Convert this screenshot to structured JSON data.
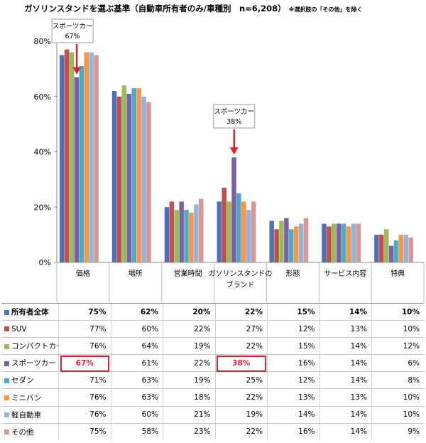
{
  "title": "ガソリンスタンドを選ぶ基準（自動車所有者のみ/車種別　n=6,208）",
  "title_note": "※選択肢の「その他」を除く",
  "callouts": [
    {
      "label_line1": "スポーツカー",
      "label_line2": "67%",
      "category_index": 0,
      "series_index": 3,
      "color": "#e0202a"
    },
    {
      "label_line1": "スポーツカー",
      "label_line2": "38%",
      "category_index": 3,
      "series_index": 3,
      "color": "#e0202a"
    }
  ],
  "chart_data": {
    "type": "bar",
    "categories": [
      "価格",
      "場所",
      "営業時間",
      "ガソリンスタンドのブランド",
      "形態",
      "サービス内容",
      "特典"
    ],
    "category_labels_display": [
      [
        "価格"
      ],
      [
        "場所"
      ],
      [
        "営業時間"
      ],
      [
        "ガソリンスタンドの",
        "ブランド"
      ],
      [
        "形態"
      ],
      [
        "サービス内容"
      ],
      [
        "特典"
      ]
    ],
    "ylim": [
      0,
      80
    ],
    "yticks": [
      0,
      20,
      40,
      60,
      80
    ],
    "ytick_labels": [
      "0%",
      "20%",
      "40%",
      "60%",
      "80%"
    ],
    "grid": false,
    "series": [
      {
        "name": "所有者全体",
        "color": "#4f70b8",
        "values": [
          75,
          62,
          20,
          22,
          15,
          14,
          10
        ],
        "labels": [
          "75%",
          "62%",
          "20%",
          "22%",
          "15%",
          "14%",
          "10%"
        ]
      },
      {
        "name": "SUV",
        "color": "#c0504d",
        "values": [
          77,
          60,
          22,
          27,
          12,
          13,
          10
        ],
        "labels": [
          "77%",
          "60%",
          "22%",
          "27%",
          "12%",
          "13%",
          "10%"
        ]
      },
      {
        "name": "コンパクトカー",
        "color": "#9bbb59",
        "values": [
          76,
          64,
          19,
          22,
          15,
          14,
          12
        ],
        "labels": [
          "76%",
          "64%",
          "19%",
          "22%",
          "15%",
          "14%",
          "12%"
        ]
      },
      {
        "name": "スポーツカー",
        "color": "#7d5fa6",
        "values": [
          67,
          61,
          22,
          38,
          16,
          14,
          6
        ],
        "labels": [
          "67%",
          "61%",
          "22%",
          "38%",
          "16%",
          "14%",
          "6%"
        ]
      },
      {
        "name": "セダン",
        "color": "#4bacc6",
        "values": [
          71,
          63,
          19,
          25,
          12,
          14,
          8
        ],
        "labels": [
          "71%",
          "63%",
          "19%",
          "25%",
          "12%",
          "14%",
          "8%"
        ]
      },
      {
        "name": "ミニバン",
        "color": "#f79646",
        "values": [
          76,
          63,
          18,
          22,
          13,
          13,
          10
        ],
        "labels": [
          "76%",
          "63%",
          "18%",
          "22%",
          "13%",
          "13%",
          "10%"
        ]
      },
      {
        "name": "軽自動車",
        "color": "#95b3d7",
        "values": [
          76,
          60,
          21,
          19,
          14,
          14,
          10
        ],
        "labels": [
          "76%",
          "60%",
          "21%",
          "19%",
          "14%",
          "14%",
          "10%"
        ]
      },
      {
        "name": "その他",
        "color": "#d99694",
        "values": [
          75,
          58,
          23,
          22,
          16,
          14,
          9
        ],
        "labels": [
          "75%",
          "58%",
          "23%",
          "22%",
          "16%",
          "14%",
          "9%"
        ]
      }
    ]
  }
}
